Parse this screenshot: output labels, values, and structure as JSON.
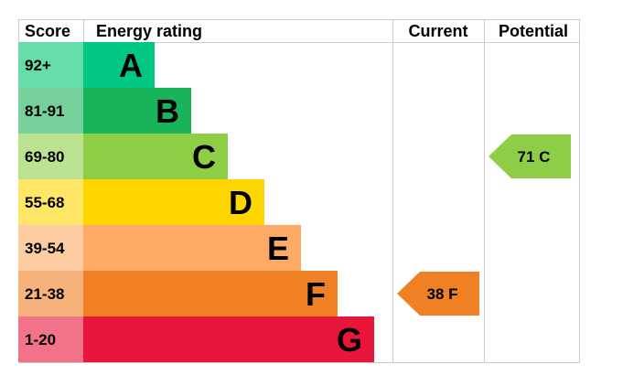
{
  "headers": {
    "score": "Score",
    "energy_rating": "Energy rating",
    "current": "Current",
    "potential": "Potential"
  },
  "chart_data": {
    "type": "bar",
    "bands": [
      {
        "score": "92+",
        "letter": "A",
        "bar_color": "#00c781",
        "score_color": "#66dda8",
        "letter_color": "#000000"
      },
      {
        "score": "81-91",
        "letter": "B",
        "bar_color": "#19b459",
        "score_color": "#75d09b",
        "letter_color": "#000000"
      },
      {
        "score": "69-80",
        "letter": "C",
        "bar_color": "#8dce46",
        "score_color": "#bbe290",
        "letter_color": "#000000"
      },
      {
        "score": "55-68",
        "letter": "D",
        "bar_color": "#ffd500",
        "score_color": "#ffe666",
        "letter_color": "#000000"
      },
      {
        "score": "39-54",
        "letter": "E",
        "bar_color": "#fcaa65",
        "score_color": "#fdcca3",
        "letter_color": "#000000"
      },
      {
        "score": "21-38",
        "letter": "F",
        "bar_color": "#ef8023",
        "score_color": "#f5b37b",
        "letter_color": "#000000"
      },
      {
        "score": "1-20",
        "letter": "G",
        "bar_color": "#e9153b",
        "score_color": "#f27389",
        "letter_color": "#000000"
      }
    ],
    "current": {
      "value": 38,
      "letter": "F",
      "label": "38  F",
      "color": "#ef8023",
      "text_color": "#000000"
    },
    "potential": {
      "value": 71,
      "letter": "C",
      "label": "71  C",
      "color": "#8dce46",
      "text_color": "#000000"
    }
  }
}
